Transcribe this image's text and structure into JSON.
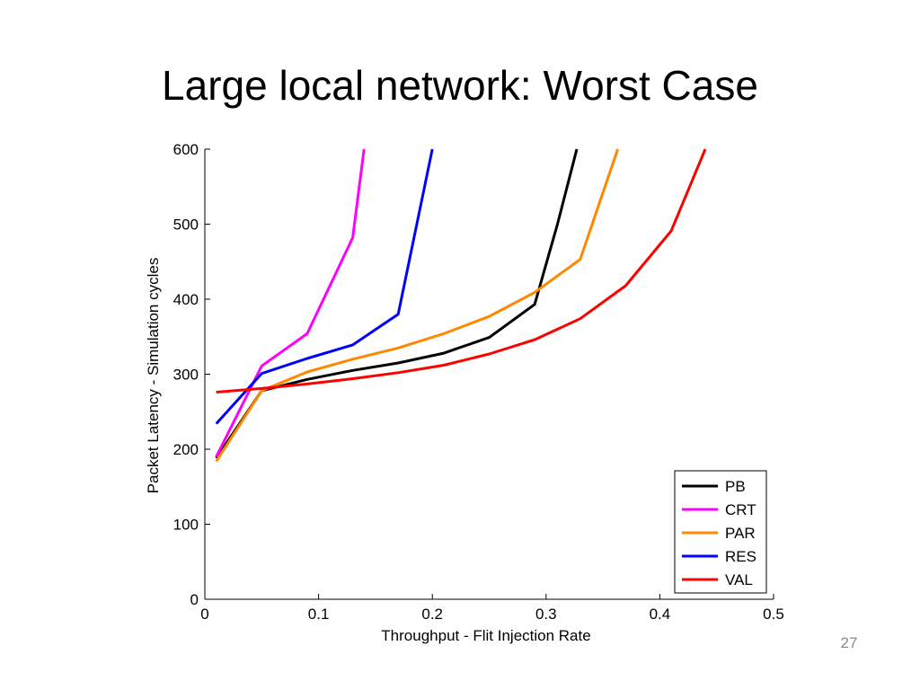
{
  "slide": {
    "title": "Large local network: Worst Case",
    "page_number": "27"
  },
  "chart_data": {
    "type": "line",
    "xlabel": "Throughput - Flit Injection Rate",
    "ylabel": "Packet Latency - Simulation cycles",
    "xlim": [
      0,
      0.5
    ],
    "ylim": [
      0,
      600
    ],
    "x_ticks": [
      "0",
      "0.1",
      "0.2",
      "0.3",
      "0.4",
      "0.5"
    ],
    "y_ticks": [
      "0",
      "100",
      "200",
      "300",
      "400",
      "500",
      "600"
    ],
    "grid": false,
    "legend_position": "bottom-right",
    "series": [
      {
        "name": "PB",
        "color": "#000000",
        "points": [
          [
            0.01,
            188
          ],
          [
            0.05,
            278
          ],
          [
            0.09,
            293
          ],
          [
            0.13,
            305
          ],
          [
            0.17,
            315
          ],
          [
            0.21,
            328
          ],
          [
            0.25,
            349
          ],
          [
            0.29,
            393
          ],
          [
            0.31,
            500
          ],
          [
            0.327,
            600
          ]
        ]
      },
      {
        "name": "CRT",
        "color": "#ff00ff",
        "points": [
          [
            0.01,
            190
          ],
          [
            0.05,
            311
          ],
          [
            0.09,
            354
          ],
          [
            0.13,
            482
          ],
          [
            0.14,
            600
          ]
        ]
      },
      {
        "name": "PAR",
        "color": "#ff8800",
        "points": [
          [
            0.01,
            184
          ],
          [
            0.05,
            278
          ],
          [
            0.09,
            303
          ],
          [
            0.13,
            320
          ],
          [
            0.17,
            335
          ],
          [
            0.21,
            354
          ],
          [
            0.25,
            377
          ],
          [
            0.29,
            409
          ],
          [
            0.33,
            453
          ],
          [
            0.363,
            600
          ]
        ]
      },
      {
        "name": "RES",
        "color": "#0000ff",
        "points": [
          [
            0.01,
            234
          ],
          [
            0.05,
            301
          ],
          [
            0.09,
            321
          ],
          [
            0.13,
            339
          ],
          [
            0.17,
            380
          ],
          [
            0.2,
            600
          ]
        ]
      },
      {
        "name": "VAL",
        "color": "#ff0000",
        "points": [
          [
            0.01,
            276
          ],
          [
            0.05,
            281
          ],
          [
            0.09,
            287
          ],
          [
            0.13,
            294
          ],
          [
            0.17,
            302
          ],
          [
            0.21,
            312
          ],
          [
            0.25,
            327
          ],
          [
            0.29,
            346
          ],
          [
            0.33,
            374
          ],
          [
            0.37,
            418
          ],
          [
            0.41,
            491
          ],
          [
            0.44,
            600
          ]
        ]
      }
    ]
  }
}
